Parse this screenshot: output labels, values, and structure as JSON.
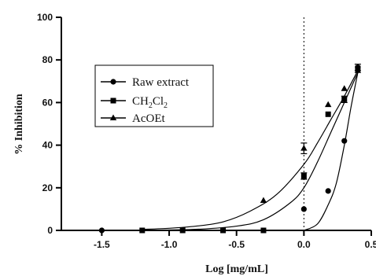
{
  "chart_data": {
    "type": "scatter",
    "title": "",
    "xlabel": "Log [mg/mL]",
    "ylabel": "% Inhibition",
    "xlim": [
      -1.8,
      0.5
    ],
    "ylim": [
      0,
      100
    ],
    "x_ticks": [
      {
        "value": -1.5,
        "label": "-1.5"
      },
      {
        "value": -1.0,
        "label": "-1.0"
      },
      {
        "value": -0.5,
        "label": "-0.5"
      },
      {
        "value": 0.0,
        "label": "0.0"
      },
      {
        "value": 0.5,
        "label": "0.5"
      }
    ],
    "y_ticks": [
      {
        "value": 0,
        "label": "0"
      },
      {
        "value": 20,
        "label": "20"
      },
      {
        "value": 40,
        "label": "40"
      },
      {
        "value": 60,
        "label": "60"
      },
      {
        "value": 80,
        "label": "80"
      },
      {
        "value": 100,
        "label": "100"
      }
    ],
    "reference_line_x": 0,
    "legend_position": "upper-left",
    "grid": false,
    "series": [
      {
        "name": "Raw extract",
        "marker": "circle",
        "color": "#000000",
        "points": [
          {
            "x": -1.5,
            "y": 0
          },
          {
            "x": 0.0,
            "y": 10
          },
          {
            "x": 0.18,
            "y": 18.5
          },
          {
            "x": 0.3,
            "y": 42
          },
          {
            "x": 0.4,
            "y": 76.5
          }
        ],
        "errors": [
          {
            "x": 0.4,
            "y_low": 75,
            "y_high": 78
          }
        ],
        "curve": [
          {
            "x": 0.0,
            "y": 0
          },
          {
            "x": 0.1,
            "y": 3
          },
          {
            "x": 0.18,
            "y": 12
          },
          {
            "x": 0.24,
            "y": 22
          },
          {
            "x": 0.3,
            "y": 40
          },
          {
            "x": 0.35,
            "y": 58
          },
          {
            "x": 0.4,
            "y": 74
          }
        ]
      },
      {
        "name": "CH2Cl2",
        "marker": "square",
        "color": "#000000",
        "points": [
          {
            "x": -1.2,
            "y": 0
          },
          {
            "x": -0.9,
            "y": 0
          },
          {
            "x": -0.6,
            "y": 0
          },
          {
            "x": -0.3,
            "y": 0
          },
          {
            "x": 0.0,
            "y": 25.5
          },
          {
            "x": 0.18,
            "y": 54.5
          },
          {
            "x": 0.3,
            "y": 61.5
          },
          {
            "x": 0.4,
            "y": 76
          }
        ],
        "errors": [
          {
            "x": 0.0,
            "y_low": 24,
            "y_high": 27
          },
          {
            "x": 0.3,
            "y_low": 60,
            "y_high": 63
          }
        ],
        "curve": [
          {
            "x": -1.2,
            "y": 0
          },
          {
            "x": -0.8,
            "y": 0.5
          },
          {
            "x": -0.5,
            "y": 2
          },
          {
            "x": -0.3,
            "y": 5
          },
          {
            "x": -0.1,
            "y": 13
          },
          {
            "x": 0.0,
            "y": 20
          },
          {
            "x": 0.1,
            "y": 32
          },
          {
            "x": 0.2,
            "y": 46
          },
          {
            "x": 0.3,
            "y": 60
          },
          {
            "x": 0.4,
            "y": 74
          }
        ]
      },
      {
        "name": "AcOEt",
        "marker": "triangle",
        "color": "#000000",
        "points": [
          {
            "x": -0.3,
            "y": 14
          },
          {
            "x": 0.0,
            "y": 38.5
          },
          {
            "x": 0.18,
            "y": 59
          },
          {
            "x": 0.3,
            "y": 66.5
          },
          {
            "x": 0.4,
            "y": 75
          }
        ],
        "errors": [
          {
            "x": 0.0,
            "y_low": 36,
            "y_high": 41
          }
        ],
        "curve": [
          {
            "x": -1.2,
            "y": 0.5
          },
          {
            "x": -1.0,
            "y": 1
          },
          {
            "x": -0.8,
            "y": 2
          },
          {
            "x": -0.6,
            "y": 4
          },
          {
            "x": -0.4,
            "y": 9
          },
          {
            "x": -0.2,
            "y": 17
          },
          {
            "x": 0.0,
            "y": 31
          },
          {
            "x": 0.1,
            "y": 41
          },
          {
            "x": 0.2,
            "y": 52
          },
          {
            "x": 0.3,
            "y": 63
          },
          {
            "x": 0.4,
            "y": 75
          }
        ]
      }
    ]
  },
  "legend": {
    "raw_label": "Raw extract",
    "ch2cl2_label_main": "CH",
    "ch2cl2_sub_1": "2",
    "ch2cl2_mid": "Cl",
    "ch2cl2_sub_2": "2",
    "acoet_label": "AcOEt"
  }
}
